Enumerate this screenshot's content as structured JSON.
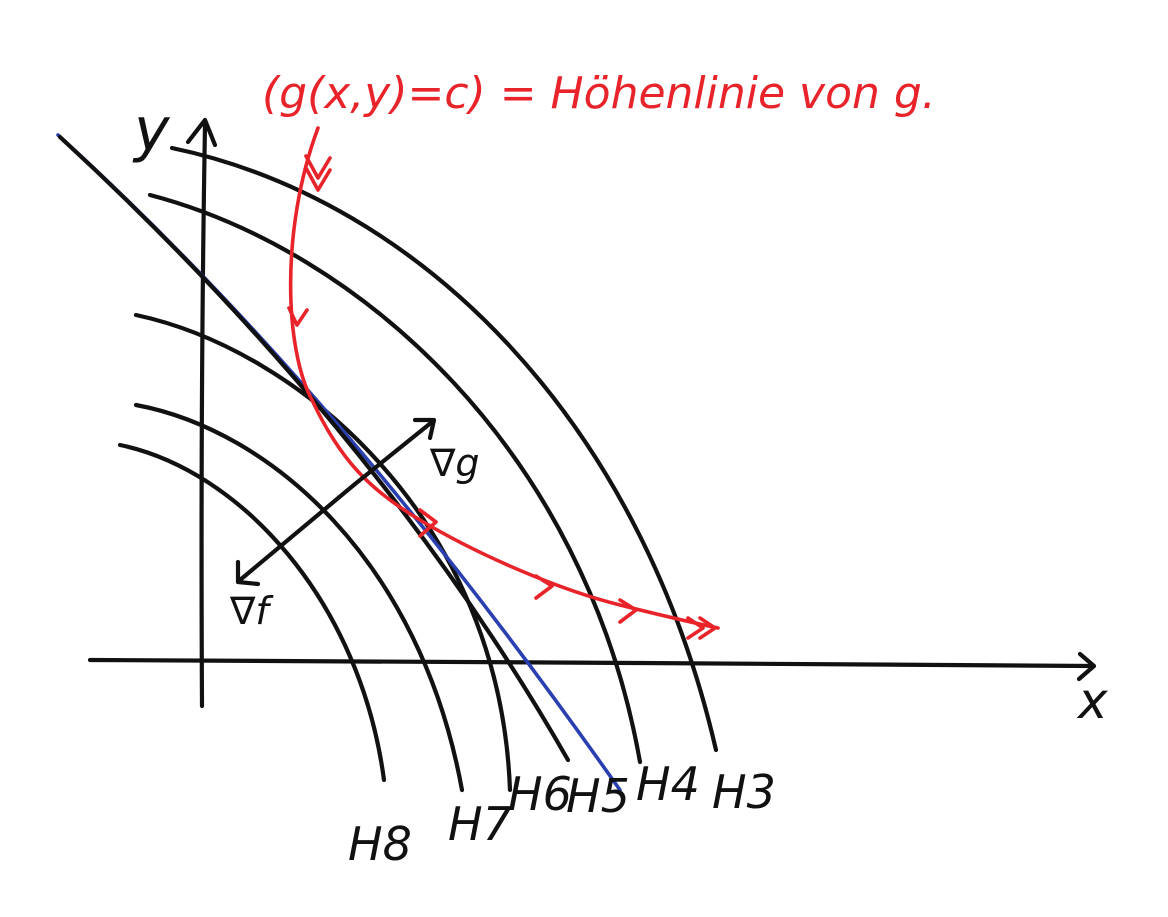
{
  "colors": {
    "ink": "#111111",
    "constraint": "#e8232a",
    "tangent": "#2a3fb0",
    "background": "#ffffff"
  },
  "axes": {
    "x_label": "x",
    "y_label": "y"
  },
  "constraint_label": "(g(x,y)=c) = Höhenlinie von g.",
  "level_curves": [
    {
      "label": "H3"
    },
    {
      "label": "H4"
    },
    {
      "label": "H5"
    },
    {
      "label": "H6"
    },
    {
      "label": "H7"
    },
    {
      "label": "H8"
    }
  ],
  "vectors": {
    "grad_g": "∇g",
    "grad_f": "∇f"
  }
}
